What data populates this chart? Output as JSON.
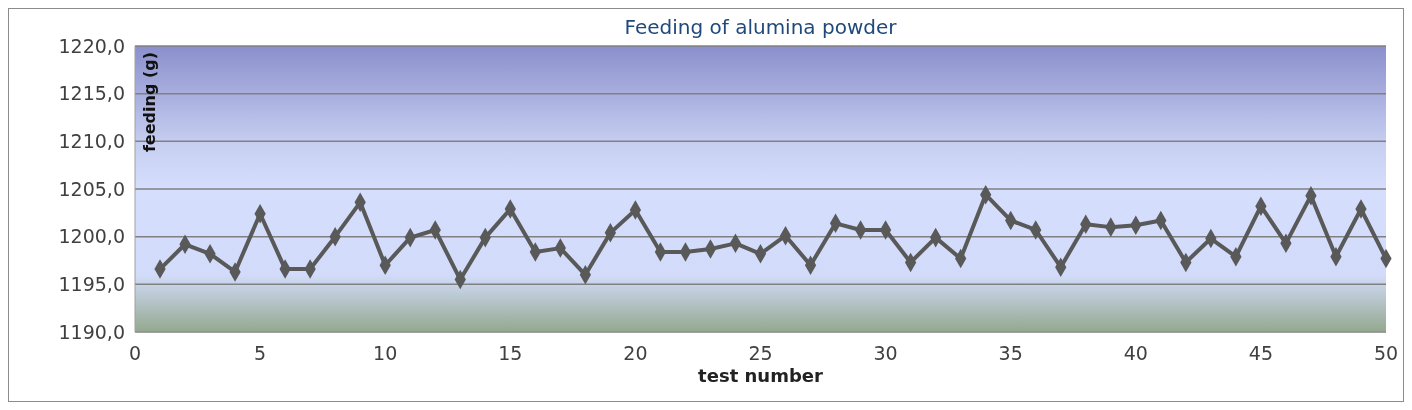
{
  "chart_data": {
    "type": "line",
    "title": "Feeding of alumina powder",
    "xlabel": "test number",
    "ylabel": "feeding (g)",
    "x": [
      1,
      2,
      3,
      4,
      5,
      6,
      7,
      8,
      9,
      10,
      11,
      12,
      13,
      14,
      15,
      16,
      17,
      18,
      19,
      20,
      21,
      22,
      23,
      24,
      25,
      26,
      27,
      28,
      29,
      30,
      31,
      32,
      33,
      34,
      35,
      36,
      37,
      38,
      39,
      40,
      41,
      42,
      43,
      44,
      45,
      46,
      47,
      48,
      49,
      50
    ],
    "series": [
      {
        "color": "#595959",
        "values": [
          1196.6,
          1199.2,
          1198.2,
          1196.3,
          1202.4,
          1196.6,
          1196.6,
          1200.0,
          1203.6,
          1197.0,
          1199.9,
          1200.7,
          1195.5,
          1199.9,
          1202.9,
          1198.4,
          1198.8,
          1196.0,
          1200.4,
          1202.8,
          1198.4,
          1198.4,
          1198.7,
          1199.3,
          1198.2,
          1200.1,
          1197.0,
          1201.4,
          1200.7,
          1200.7,
          1197.3,
          1199.9,
          1197.7,
          1204.4,
          1201.7,
          1200.7,
          1196.8,
          1201.3,
          1201.0,
          1201.2,
          1201.7,
          1197.3,
          1199.8,
          1197.9,
          1203.2,
          1199.3,
          1204.3,
          1197.9,
          1202.9,
          1197.7
        ]
      }
    ],
    "xlim": [
      0,
      50
    ],
    "xticks": [
      0,
      5,
      10,
      15,
      20,
      25,
      30,
      35,
      40,
      45,
      50
    ],
    "ylim": [
      1190,
      1220
    ],
    "yticks": [
      {
        "value": 1190,
        "label": "1190,0"
      },
      {
        "value": 1195,
        "label": "1195,0"
      },
      {
        "value": 1200,
        "label": "1200,0"
      },
      {
        "value": 1205,
        "label": "1205,0"
      },
      {
        "value": 1210,
        "label": "1210,0"
      },
      {
        "value": 1215,
        "label": "1215,0"
      },
      {
        "value": 1220,
        "label": "1220,0"
      }
    ],
    "grid": "y",
    "marker": "diamond",
    "line_style": "solid"
  }
}
